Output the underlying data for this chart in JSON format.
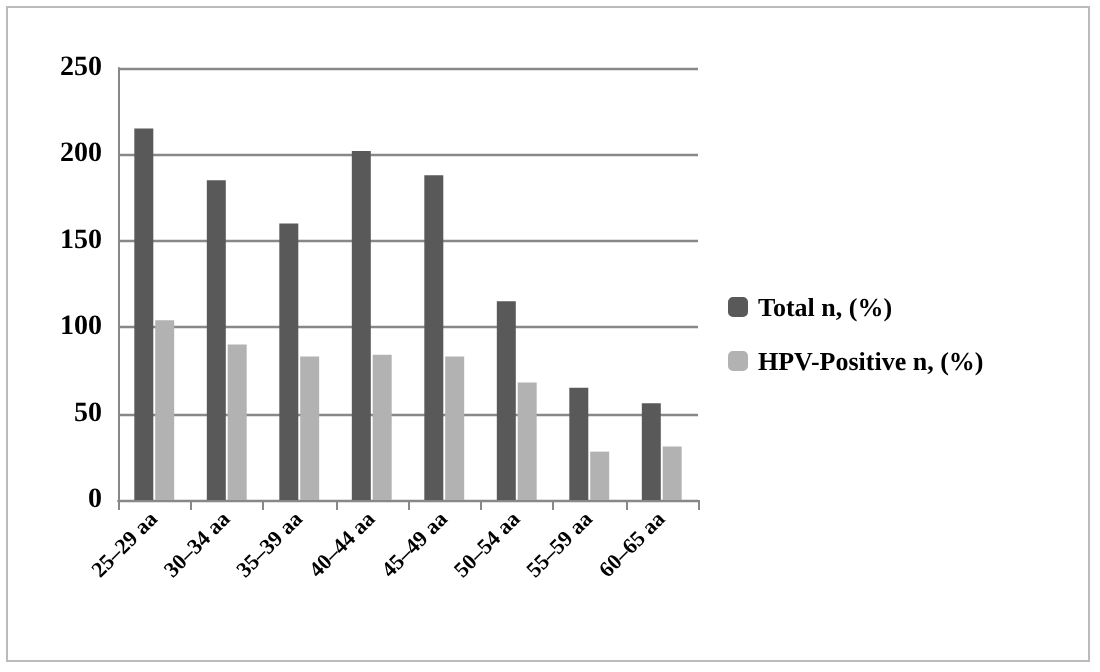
{
  "chart_data": {
    "type": "bar",
    "categories": [
      "25–29 aa",
      "30–34 aa",
      "35–39 aa",
      "40–44 aa",
      "45–49 aa",
      "50–54 aa",
      "55–59 aa",
      "60–65 aa"
    ],
    "series": [
      {
        "name": "Total n, (%)",
        "color": "#595959",
        "values": [
          215,
          185,
          160,
          202,
          188,
          115,
          65,
          56
        ]
      },
      {
        "name": "HPV-Positive n, (%)",
        "color": "#b2b2b2",
        "values": [
          104,
          90,
          83,
          84,
          83,
          68,
          28,
          31
        ]
      }
    ],
    "ylim": [
      0,
      250
    ],
    "yticks": [
      0,
      50,
      100,
      150,
      200,
      250
    ],
    "grid": "y",
    "legend": "right"
  }
}
